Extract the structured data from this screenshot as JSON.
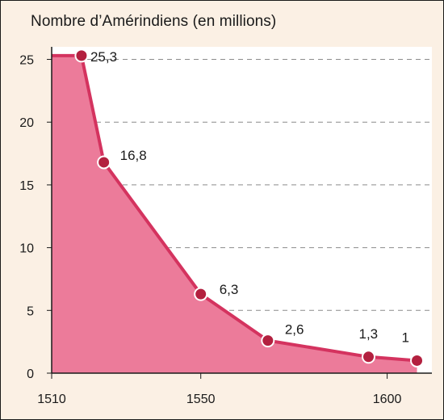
{
  "chart_data": {
    "type": "area",
    "title": "Nombre d’Amérindiens (en millions)",
    "x": [
      1518,
      1524,
      1550,
      1568,
      1595,
      1608
    ],
    "values": [
      25.3,
      16.8,
      6.3,
      2.6,
      1.3,
      1
    ],
    "data_labels": [
      "25,3",
      "16,8",
      "6,3",
      "2,6",
      "1,3",
      "1"
    ],
    "xlim": [
      1510,
      1612
    ],
    "ylim": [
      0,
      26
    ],
    "x_ticks": [
      1510,
      1550,
      1600
    ],
    "x_tick_labels": [
      "1510",
      "1550",
      "1600"
    ],
    "y_ticks": [
      0,
      5,
      10,
      15,
      20,
      25
    ],
    "y_tick_labels": [
      "0",
      "5",
      "10",
      "15",
      "20",
      "25"
    ],
    "area_start_value": 25.3,
    "grid": "horizontal-dashed",
    "colors": {
      "background": "#fbf0e4",
      "fill": "#ec7b9a",
      "line": "#d4335f",
      "marker": "#b3203f",
      "marker_stroke": "#ffffff",
      "grid": "#8c8c8c",
      "axis": "#1a1a1a"
    }
  }
}
